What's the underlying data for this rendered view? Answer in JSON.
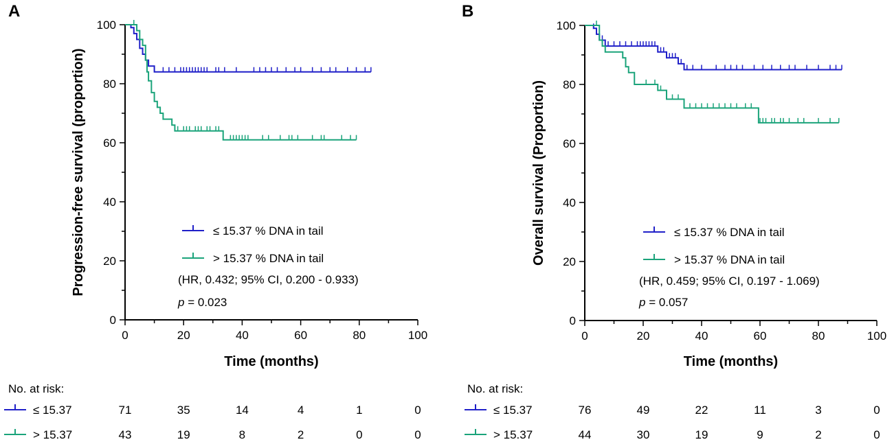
{
  "chart_data": [
    {
      "type": "line",
      "panel": "A",
      "xlabel": "Time (months)",
      "ylabel": "Progression-free survival (proportion)",
      "xlim": [
        0,
        100
      ],
      "ylim": [
        0,
        100
      ],
      "xticks": [
        0,
        20,
        40,
        60,
        80,
        100
      ],
      "yticks": [
        0,
        20,
        40,
        60,
        80,
        100
      ],
      "grid": false,
      "legend_position": "center",
      "series": [
        {
          "name": "≤ 15.37 % DNA in tail",
          "color": "#1f1fc8",
          "steps": [
            [
              0,
              100
            ],
            [
              2,
              99
            ],
            [
              3,
              97
            ],
            [
              4,
              95
            ],
            [
              5,
              92
            ],
            [
              6,
              90
            ],
            [
              7,
              88
            ],
            [
              8,
              86
            ],
            [
              10,
              84
            ],
            [
              84,
              84
            ]
          ],
          "censored": [
            13,
            15,
            17,
            19,
            20,
            21,
            22,
            23,
            24,
            25,
            26,
            27,
            28,
            31,
            32,
            34,
            38,
            44,
            46,
            48,
            50,
            52,
            55,
            58,
            60,
            64,
            67,
            70,
            72,
            76,
            79,
            82,
            84
          ]
        },
        {
          "name": "> 15.37 % DNA in tail",
          "color": "#1aa37a",
          "steps": [
            [
              0,
              100
            ],
            [
              3,
              100
            ],
            [
              4,
              98
            ],
            [
              5,
              95
            ],
            [
              6,
              93
            ],
            [
              7,
              88
            ],
            [
              7.5,
              84
            ],
            [
              8,
              81
            ],
            [
              9,
              77
            ],
            [
              10,
              74
            ],
            [
              11,
              72
            ],
            [
              12,
              70
            ],
            [
              13,
              68
            ],
            [
              16,
              66
            ],
            [
              17,
              64
            ],
            [
              33,
              64
            ],
            [
              33.5,
              61
            ],
            [
              79,
              61
            ]
          ],
          "censored": [
            3,
            18,
            20,
            21,
            22,
            24,
            25,
            26,
            28,
            29,
            31,
            32,
            36,
            37,
            38,
            39,
            40,
            41,
            42,
            47,
            49,
            53,
            56,
            57,
            59,
            64,
            67,
            68,
            74,
            77,
            79
          ]
        }
      ],
      "hr_text": "(HR, 0.432; 95% CI, 0.200 - 0.933)",
      "p_label": "p",
      "p_value": " = 0.023",
      "risk_table": {
        "title": "No. at risk:",
        "rows": [
          {
            "label": "≤ 15.37",
            "values": [
              "71",
              "35",
              "14",
              "4",
              "1",
              "0"
            ]
          },
          {
            "label": "> 15.37",
            "values": [
              "43",
              "19",
              "8",
              "2",
              "0",
              "0"
            ]
          }
        ]
      }
    },
    {
      "type": "line",
      "panel": "B",
      "xlabel": "Time (months)",
      "ylabel": "Overall survival  (Proportion)",
      "xlim": [
        0,
        100
      ],
      "ylim": [
        0,
        100
      ],
      "xticks": [
        0,
        20,
        40,
        60,
        80,
        100
      ],
      "yticks": [
        0,
        20,
        40,
        60,
        80,
        100
      ],
      "grid": false,
      "legend_position": "center",
      "series": [
        {
          "name": "≤ 15.37 % DNA in tail",
          "color": "#1f1fc8",
          "steps": [
            [
              0,
              100
            ],
            [
              3,
              99
            ],
            [
              4,
              97
            ],
            [
              5,
              95
            ],
            [
              7,
              93
            ],
            [
              20,
              93
            ],
            [
              25,
              91
            ],
            [
              28,
              89
            ],
            [
              32,
              87
            ],
            [
              34,
              85
            ],
            [
              88,
              85
            ]
          ],
          "censored": [
            3,
            6,
            8,
            10,
            12,
            14,
            16,
            18,
            19,
            20,
            21,
            22,
            23,
            24,
            25,
            26,
            27,
            28,
            29,
            30,
            31,
            32,
            33,
            35,
            37,
            40,
            45,
            48,
            50,
            52,
            54,
            58,
            61,
            64,
            67,
            70,
            72,
            76,
            80,
            84,
            86,
            88
          ]
        },
        {
          "name": "> 15.37 % DNA in tail",
          "color": "#1aa37a",
          "steps": [
            [
              0,
              100
            ],
            [
              4,
              100
            ],
            [
              5,
              95
            ],
            [
              6,
              93
            ],
            [
              7,
              91
            ],
            [
              13,
              89
            ],
            [
              14,
              86
            ],
            [
              15,
              84
            ],
            [
              17,
              80
            ],
            [
              25,
              78
            ],
            [
              28,
              75
            ],
            [
              34,
              72
            ],
            [
              59,
              72
            ],
            [
              59.5,
              67
            ],
            [
              87,
              67
            ]
          ],
          "censored": [
            4,
            21,
            24,
            26,
            30,
            32,
            34,
            36,
            38,
            40,
            42,
            44,
            46,
            48,
            50,
            52,
            55,
            57,
            60,
            61,
            62,
            64,
            65,
            67,
            68,
            70,
            73,
            75,
            80,
            84,
            87
          ]
        }
      ],
      "hr_text": "(HR, 0.459; 95% CI, 0.197 - 1.069)",
      "p_label": "p",
      "p_value": " = 0.057",
      "risk_table": {
        "title": "No. at risk:",
        "rows": [
          {
            "label": "≤ 15.37",
            "values": [
              "76",
              "49",
              "22",
              "11",
              "3",
              "0"
            ]
          },
          {
            "label": "> 15.37",
            "values": [
              "44",
              "30",
              "19",
              "9",
              "2",
              "0"
            ]
          }
        ]
      }
    }
  ]
}
